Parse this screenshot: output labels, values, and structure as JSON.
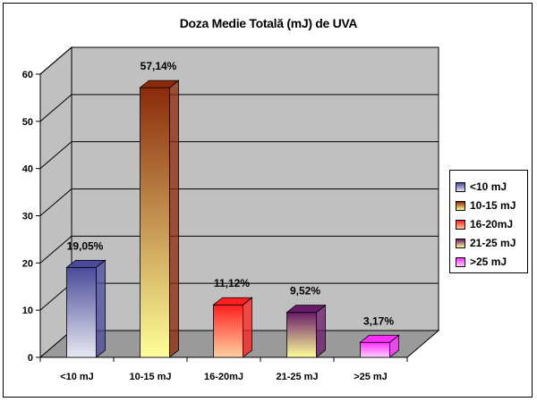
{
  "chart_data": {
    "type": "bar",
    "title": "Doza Medie Totală (mJ) de UVA",
    "categories": [
      "<10 mJ",
      "10-15 mJ",
      "16-20mJ",
      "21-25 mJ",
      ">25 mJ"
    ],
    "values": [
      19.05,
      57.14,
      11.12,
      9.52,
      3.17
    ],
    "data_labels": [
      "19,05%",
      "57,14%",
      "11,12%",
      "9,52%",
      "3,17%"
    ],
    "legend": [
      "<10 mJ",
      "10-15 mJ",
      "16-20mJ",
      "21-25 mJ",
      ">25 mJ"
    ],
    "ylim": [
      0,
      60
    ],
    "yticks": [
      0,
      10,
      20,
      30,
      40,
      50,
      60
    ],
    "grid": true,
    "legend_position": "right",
    "bar_colors": [
      "#4a4a9a",
      "#8a2a0a",
      "#ff2020",
      "#6a1a6a",
      "#ff30ff"
    ],
    "bar_fade_colors": [
      "#e8e8f2",
      "#ffff99",
      "#ffd0a0",
      "#ffff99",
      "#ffd0ff"
    ],
    "wall_color": "#c0c0c0"
  }
}
